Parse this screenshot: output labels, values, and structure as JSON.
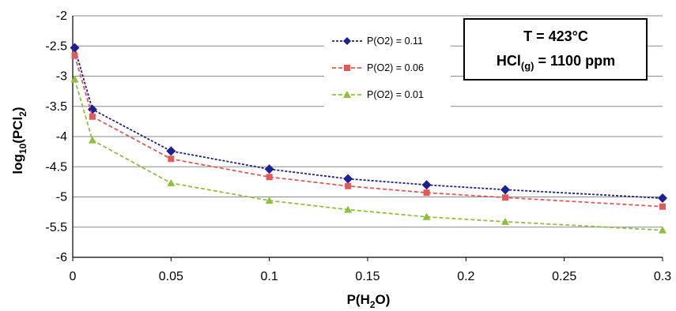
{
  "chart_data": {
    "type": "line",
    "title": "",
    "xlabel": "P(H2O)",
    "ylabel": "log10(PCl2)",
    "xlim": [
      0,
      0.3
    ],
    "ylim": [
      -6,
      -2
    ],
    "xticks": [
      0,
      0.05,
      0.1,
      0.15,
      0.2,
      0.25,
      0.3
    ],
    "xtick_labels": [
      "0",
      "0.05",
      "0.1",
      "0.15",
      "0.2",
      "0.25",
      "0.3"
    ],
    "yticks": [
      -2,
      -2.5,
      -3,
      -3.5,
      -4,
      -4.5,
      -5,
      -5.5,
      -6
    ],
    "ytick_labels": [
      "-2",
      "-2.5",
      "-3",
      "-3.5",
      "-4",
      "-4.5",
      "-5",
      "-5.5",
      "-6"
    ],
    "grid": "horizontal",
    "legend_position": "top-center",
    "x": [
      0.001,
      0.01,
      0.05,
      0.1,
      0.14,
      0.18,
      0.22,
      0.3
    ],
    "series": [
      {
        "name": "P(O2) = 0.11",
        "color": "#1f1f8f",
        "marker": "diamond",
        "values": [
          -2.53,
          -3.55,
          -4.24,
          -4.54,
          -4.7,
          -4.8,
          -4.88,
          -5.02
        ]
      },
      {
        "name": "P(O2) = 0.06",
        "color": "#e05a5a",
        "marker": "square",
        "values": [
          -2.66,
          -3.67,
          -4.37,
          -4.67,
          -4.82,
          -4.93,
          -5.01,
          -5.16
        ]
      },
      {
        "name": "P(O2) = 0.01",
        "color": "#8fbf40",
        "marker": "triangle",
        "values": [
          -3.05,
          -4.06,
          -4.77,
          -5.06,
          -5.21,
          -5.33,
          -5.41,
          -5.55
        ]
      }
    ],
    "annotation": {
      "line1": "T = 423°C",
      "line2_main": "HCl",
      "line2_sub": "(g)",
      "line2_rest": " = 1100 ppm"
    }
  }
}
